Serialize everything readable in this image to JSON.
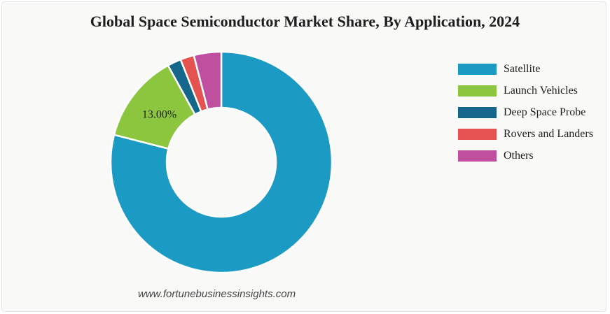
{
  "chart_data": {
    "type": "pie",
    "title": "Global Space Semiconductor Market Share, By Application, 2024",
    "categories": [
      "Satellite",
      "Launch Vehicles",
      "Deep Space Probe",
      "Rovers and Landers",
      "Others"
    ],
    "values": [
      79.0,
      13.0,
      2.0,
      2.0,
      4.0
    ],
    "colors": [
      "#1b9ac4",
      "#8cc63f",
      "#14668a",
      "#e4534f",
      "#c0509f"
    ],
    "data_labels": [
      "",
      "13.00%",
      "",
      "",
      ""
    ],
    "legend_position": "right",
    "donut": true
  },
  "source": "www.fortunebusinessinsights.com"
}
